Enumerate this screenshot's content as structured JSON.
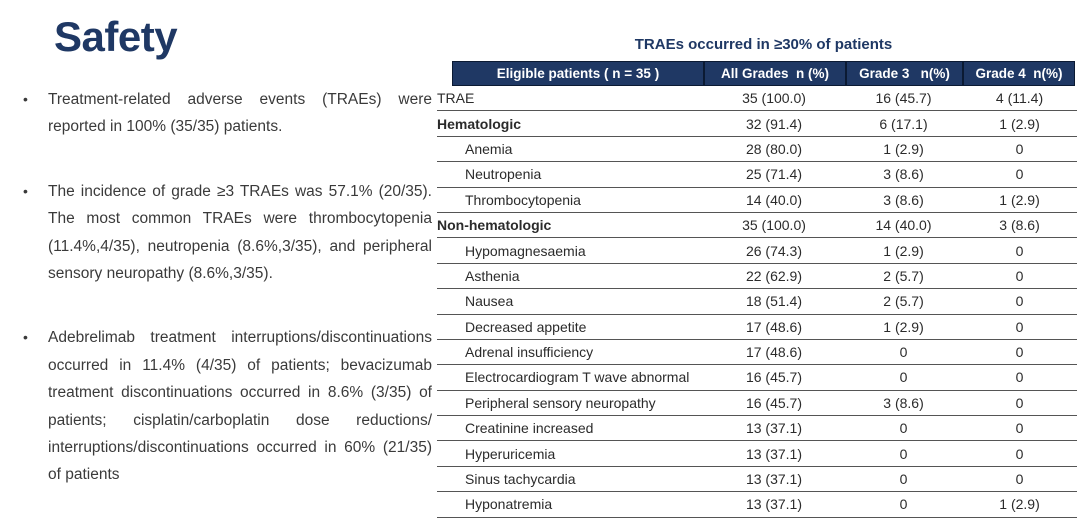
{
  "slide": {
    "title": "Safety",
    "bullets": [
      "Treatment-related adverse events (TRAEs) were reported in 100% (35/35) patients.",
      "The incidence of grade ≥3 TRAEs was 57.1% (20/35). The most common TRAEs were thrombocytopenia (11.4%,4/35), neutropenia (8.6%,3/35), and peripheral sensory neuropathy (8.6%,3/35).",
      "Adebrelimab treatment interruptions/discontinuations occurred in 11.4% (4/35) of patients; bevacizumab treatment discontinuations occurred in 8.6% (3/35) of patients; cisplatin/carboplatin dose reductions/ interruptions/discontinuations occurred in 60% (21/35) of patients"
    ]
  },
  "table": {
    "title": "TRAEs occurred in ≥30% of patients",
    "columns": [
      "Eligible patients ( n = 35 )",
      "All Grades  n (%)",
      "Grade 3   n(%)",
      "Grade 4  n(%)"
    ],
    "rows": [
      {
        "label": "TRAE",
        "indent": false,
        "bold": false,
        "values": [
          "35 (100.0)",
          "16 (45.7)",
          "4 (11.4)"
        ]
      },
      {
        "label": "Hematologic",
        "indent": false,
        "bold": true,
        "values": [
          "32 (91.4)",
          "6 (17.1)",
          "1 (2.9)"
        ]
      },
      {
        "label": "Anemia",
        "indent": true,
        "bold": false,
        "values": [
          "28 (80.0)",
          "1 (2.9)",
          "0"
        ]
      },
      {
        "label": "Neutropenia",
        "indent": true,
        "bold": false,
        "values": [
          "25 (71.4)",
          "3 (8.6)",
          "0"
        ]
      },
      {
        "label": "Thrombocytopenia",
        "indent": true,
        "bold": false,
        "values": [
          "14 (40.0)",
          "3 (8.6)",
          "1 (2.9)"
        ]
      },
      {
        "label": "Non-hematologic",
        "indent": false,
        "bold": true,
        "values": [
          "35 (100.0)",
          "14 (40.0)",
          "3 (8.6)"
        ]
      },
      {
        "label": "Hypomagnesaemia",
        "indent": true,
        "bold": false,
        "values": [
          "26 (74.3)",
          "1 (2.9)",
          "0"
        ]
      },
      {
        "label": "Asthenia",
        "indent": true,
        "bold": false,
        "values": [
          "22 (62.9)",
          "2 (5.7)",
          "0"
        ]
      },
      {
        "label": "Nausea",
        "indent": true,
        "bold": false,
        "values": [
          "18 (51.4)",
          "2 (5.7)",
          "0"
        ]
      },
      {
        "label": "Decreased appetite",
        "indent": true,
        "bold": false,
        "values": [
          "17 (48.6)",
          "1 (2.9)",
          "0"
        ]
      },
      {
        "label": "Adrenal insufficiency",
        "indent": true,
        "bold": false,
        "values": [
          "17 (48.6)",
          "0",
          "0"
        ]
      },
      {
        "label": "Electrocardiogram T wave abnormal",
        "indent": true,
        "bold": false,
        "values": [
          "16 (45.7)",
          "0",
          "0"
        ]
      },
      {
        "label": "Peripheral sensory neuropathy",
        "indent": true,
        "bold": false,
        "values": [
          "16 (45.7)",
          "3 (8.6)",
          "0"
        ]
      },
      {
        "label": "Creatinine increased",
        "indent": true,
        "bold": false,
        "values": [
          "13 (37.1)",
          "0",
          "0"
        ]
      },
      {
        "label": "Hyperuricemia",
        "indent": true,
        "bold": false,
        "values": [
          "13 (37.1)",
          "0",
          "0"
        ]
      },
      {
        "label": "Sinus tachycardia",
        "indent": true,
        "bold": false,
        "values": [
          "13 (37.1)",
          "0",
          "0"
        ]
      },
      {
        "label": "Hyponatremia",
        "indent": true,
        "bold": false,
        "values": [
          "13 (37.1)",
          "0",
          "1 (2.9)"
        ]
      }
    ]
  },
  "colors": {
    "navy": "#1F3864",
    "header_text": "#FFFFFF",
    "body_text": "#3A3A3A",
    "row_line": "#555555"
  }
}
